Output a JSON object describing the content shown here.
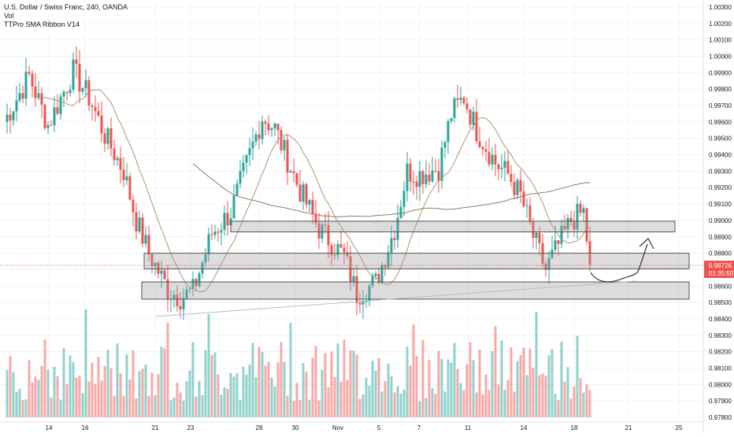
{
  "legend": {
    "symbol_title": "U.S. Dollar / Swiss Franc, 240, OANDA",
    "volume_label": "Vol",
    "indicator_label": "TTPro SMA Ribbon V14"
  },
  "price_badge": {
    "price": "0.98726",
    "countdown": "01:35:50"
  },
  "colors": {
    "up": "#26a69a",
    "down": "#ef5350",
    "grid": "#f0f3fa",
    "axis_text": "#131722",
    "zone_fill": "#9e9e9e",
    "ma": "#a99a6a",
    "price_line": "#ef5350"
  },
  "chart_data": {
    "type": "candlestick",
    "title": "U.S. Dollar / Swiss Franc, 240, OANDA",
    "ylim": [
      0.978,
      1.0035
    ],
    "y_ticks": [
      "1.00300",
      "1.00200",
      "1.00100",
      "1.00000",
      "0.99900",
      "0.99800",
      "0.99700",
      "0.99600",
      "0.99500",
      "0.99400",
      "0.99300",
      "0.99200",
      "0.99100",
      "0.99000",
      "0.98900",
      "0.98800",
      "0.98700",
      "0.98600",
      "0.98500",
      "0.98400",
      "0.98300",
      "0.98200",
      "0.98100",
      "0.98000",
      "0.97900",
      "0.97800"
    ],
    "x_ticks": [
      "14",
      "16",
      "21",
      "23",
      "28",
      "30",
      "Nov",
      "5",
      "7",
      "11",
      "14",
      "18",
      "21",
      "25"
    ],
    "current_price": 0.98726,
    "zones": [
      {
        "low": 0.9893,
        "high": 0.98995
      },
      {
        "low": 0.98705,
        "high": 0.988
      },
      {
        "low": 0.9852,
        "high": 0.98625
      }
    ],
    "trendline": {
      "from": [
        "Oct 20",
        0.98415
      ],
      "to": [
        "Nov 20",
        0.9863
      ]
    },
    "anchors": [
      {
        "i": 0,
        "p": 0.996
      },
      {
        "i": 8,
        "p": 0.9988
      },
      {
        "i": 14,
        "p": 0.9958
      },
      {
        "i": 22,
        "p": 0.9991
      },
      {
        "i": 27,
        "p": 0.9975
      },
      {
        "i": 32,
        "p": 0.9952
      },
      {
        "i": 38,
        "p": 0.993
      },
      {
        "i": 42,
        "p": 0.99
      },
      {
        "i": 46,
        "p": 0.988
      },
      {
        "i": 52,
        "p": 0.9858
      },
      {
        "i": 56,
        "p": 0.9853
      },
      {
        "i": 60,
        "p": 0.9857
      },
      {
        "i": 66,
        "p": 0.9892
      },
      {
        "i": 72,
        "p": 0.9905
      },
      {
        "i": 78,
        "p": 0.994
      },
      {
        "i": 82,
        "p": 0.9963
      },
      {
        "i": 86,
        "p": 0.9956
      },
      {
        "i": 94,
        "p": 0.9918
      },
      {
        "i": 100,
        "p": 0.9895
      },
      {
        "i": 108,
        "p": 0.9878
      },
      {
        "i": 112,
        "p": 0.9855
      },
      {
        "i": 118,
        "p": 0.9862
      },
      {
        "i": 124,
        "p": 0.9895
      },
      {
        "i": 128,
        "p": 0.993
      },
      {
        "i": 132,
        "p": 0.9928
      },
      {
        "i": 138,
        "p": 0.9932
      },
      {
        "i": 142,
        "p": 0.9965
      },
      {
        "i": 146,
        "p": 0.9975
      },
      {
        "i": 150,
        "p": 0.9955
      },
      {
        "i": 156,
        "p": 0.9935
      },
      {
        "i": 160,
        "p": 0.9928
      },
      {
        "i": 164,
        "p": 0.9915
      },
      {
        "i": 168,
        "p": 0.989
      },
      {
        "i": 172,
        "p": 0.987
      },
      {
        "i": 176,
        "p": 0.9885
      },
      {
        "i": 180,
        "p": 0.99
      },
      {
        "i": 184,
        "p": 0.9905
      },
      {
        "i": 186,
        "p": 0.9873
      }
    ]
  }
}
